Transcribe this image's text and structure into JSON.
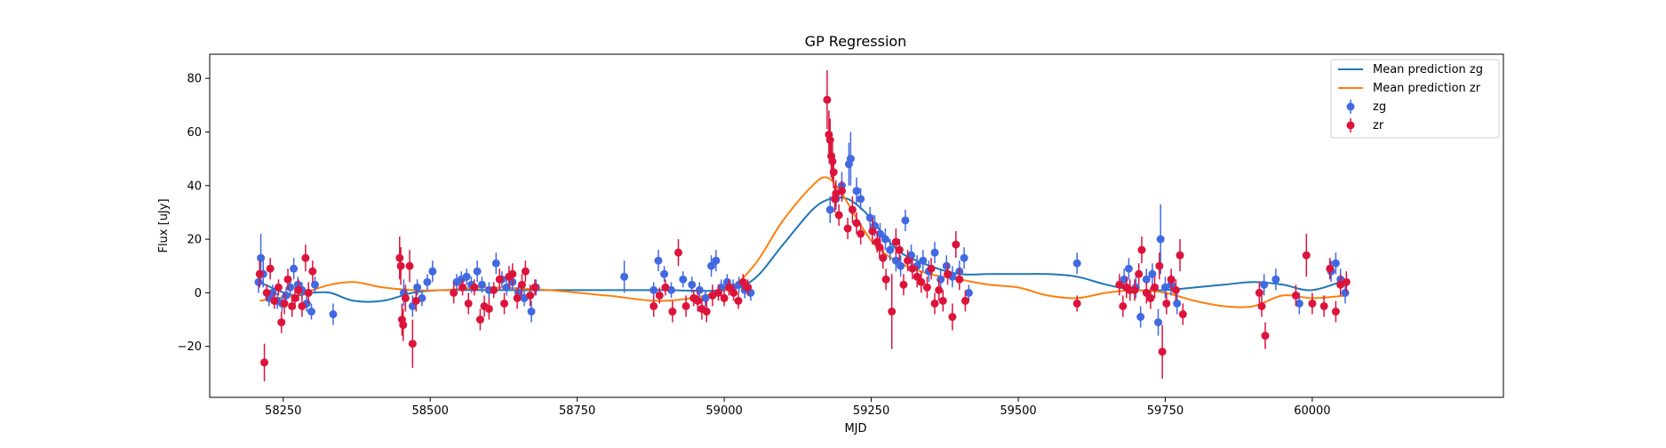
{
  "chart_data": {
    "type": "scatter",
    "title": "GP Regression",
    "xlabel": "MJD",
    "ylabel": "Flux [uJy]",
    "xlim": [
      58125,
      60325
    ],
    "ylim": [
      -39,
      89
    ],
    "xticks": [
      58250,
      58500,
      58750,
      59000,
      59250,
      59500,
      59750,
      60000
    ],
    "yticks": [
      -20,
      0,
      20,
      40,
      60,
      80
    ],
    "grid": false,
    "legend_position": "top-right",
    "legend": [
      "Mean prediction zg",
      "Mean prediction zr",
      "zg",
      "zr"
    ],
    "colors": {
      "mean_zg": "#1f77b4",
      "mean_zr": "#ff7f0e",
      "zg": "#4169e1",
      "zr": "#dc143c"
    },
    "lines": [
      {
        "name": "Mean prediction zg",
        "x": [
          58210,
          58240,
          58270,
          58300,
          58330,
          58370,
          58420,
          58470,
          58520,
          58600,
          58700,
          58800,
          58900,
          59000,
          59050,
          59100,
          59150,
          59180,
          59210,
          59240,
          59270,
          59300,
          59350,
          59400,
          59450,
          59500,
          59550,
          59600,
          59650,
          59700,
          59750,
          59800,
          59850,
          59900,
          59950,
          60000,
          60060
        ],
        "y": [
          4,
          1,
          -1,
          0,
          0,
          -3,
          -3,
          0,
          1,
          1,
          1,
          1,
          1,
          1,
          5,
          18,
          31,
          35,
          35,
          30,
          22,
          15,
          10,
          7,
          7,
          7,
          7,
          6,
          3,
          1,
          1,
          2,
          3,
          4,
          3,
          1,
          5
        ]
      },
      {
        "name": "Mean prediction zr",
        "x": [
          58210,
          58240,
          58270,
          58300,
          58330,
          58370,
          58420,
          58470,
          58520,
          58600,
          58700,
          58800,
          58900,
          59000,
          59050,
          59100,
          59150,
          59175,
          59200,
          59230,
          59260,
          59300,
          59350,
          59400,
          59450,
          59500,
          59550,
          59600,
          59650,
          59700,
          59750,
          59800,
          59850,
          59900,
          59950,
          60000,
          60060
        ],
        "y": [
          -3,
          -2,
          -1,
          1,
          3,
          4,
          2,
          1,
          1,
          2,
          1,
          -1,
          -3,
          1,
          10,
          27,
          40,
          43,
          37,
          26,
          17,
          11,
          7,
          5,
          3,
          2,
          -1,
          -2,
          0,
          1,
          0,
          -3,
          -5,
          -5,
          -1,
          -2,
          -1
        ]
      }
    ],
    "series": [
      {
        "name": "zg",
        "points": [
          [
            58208,
            4,
            4
          ],
          [
            58212,
            13,
            9
          ],
          [
            58216,
            7,
            5
          ],
          [
            58226,
            -2,
            3
          ],
          [
            58232,
            0,
            3
          ],
          [
            58240,
            -3,
            3
          ],
          [
            58248,
            -4,
            3
          ],
          [
            58255,
            -1,
            3
          ],
          [
            58262,
            2,
            3
          ],
          [
            58268,
            9,
            4
          ],
          [
            58275,
            3,
            3
          ],
          [
            58282,
            1,
            3
          ],
          [
            58290,
            -4,
            3
          ],
          [
            58298,
            -7,
            3
          ],
          [
            58304,
            3,
            3
          ],
          [
            58335,
            -8,
            4
          ],
          [
            58455,
            0,
            5
          ],
          [
            58470,
            -5,
            4
          ],
          [
            58478,
            2,
            3
          ],
          [
            58486,
            -2,
            3
          ],
          [
            58495,
            4,
            3
          ],
          [
            58504,
            8,
            4
          ],
          [
            58545,
            4,
            3
          ],
          [
            58553,
            5,
            3
          ],
          [
            58562,
            6,
            3
          ],
          [
            58570,
            3,
            3
          ],
          [
            58580,
            8,
            4
          ],
          [
            58588,
            3,
            3
          ],
          [
            58600,
            1,
            3
          ],
          [
            58612,
            11,
            4
          ],
          [
            58622,
            5,
            3
          ],
          [
            58630,
            2,
            3
          ],
          [
            58640,
            4,
            3
          ],
          [
            58650,
            0,
            3
          ],
          [
            58660,
            -2,
            3
          ],
          [
            58672,
            -7,
            4
          ],
          [
            58680,
            2,
            3
          ],
          [
            58830,
            6,
            6
          ],
          [
            58880,
            1,
            3
          ],
          [
            58888,
            12,
            4
          ],
          [
            58898,
            7,
            3
          ],
          [
            58910,
            1,
            3
          ],
          [
            58930,
            5,
            3
          ],
          [
            58945,
            3,
            3
          ],
          [
            58958,
            1,
            3
          ],
          [
            58968,
            -2,
            3
          ],
          [
            58978,
            10,
            4
          ],
          [
            58986,
            12,
            4
          ],
          [
            58995,
            2,
            3
          ],
          [
            59005,
            4,
            3
          ],
          [
            59015,
            2,
            3
          ],
          [
            59025,
            3,
            3
          ],
          [
            59035,
            1,
            3
          ],
          [
            59045,
            0,
            3
          ],
          [
            59180,
            31,
            5
          ],
          [
            59190,
            35,
            4
          ],
          [
            59200,
            40,
            5
          ],
          [
            59212,
            48,
            8
          ],
          [
            59215,
            50,
            10
          ],
          [
            59225,
            38,
            5
          ],
          [
            59232,
            35,
            4
          ],
          [
            59248,
            28,
            4
          ],
          [
            59256,
            25,
            4
          ],
          [
            59265,
            22,
            4
          ],
          [
            59274,
            20,
            4
          ],
          [
            59282,
            16,
            4
          ],
          [
            59292,
            12,
            4
          ],
          [
            59300,
            10,
            4
          ],
          [
            59308,
            27,
            4
          ],
          [
            59318,
            14,
            4
          ],
          [
            59328,
            10,
            4
          ],
          [
            59338,
            12,
            4
          ],
          [
            59348,
            8,
            4
          ],
          [
            59358,
            15,
            4
          ],
          [
            59368,
            5,
            4
          ],
          [
            59378,
            10,
            4
          ],
          [
            59388,
            6,
            4
          ],
          [
            59400,
            8,
            4
          ],
          [
            59408,
            13,
            4
          ],
          [
            59416,
            0,
            3
          ],
          [
            59600,
            11,
            4
          ],
          [
            59680,
            5,
            4
          ],
          [
            59688,
            9,
            4
          ],
          [
            59700,
            2,
            4
          ],
          [
            59708,
            -9,
            4
          ],
          [
            59718,
            5,
            4
          ],
          [
            59728,
            7,
            4
          ],
          [
            59738,
            -11,
            5
          ],
          [
            59742,
            20,
            13
          ],
          [
            59750,
            2,
            4
          ],
          [
            59760,
            3,
            4
          ],
          [
            59770,
            -4,
            4
          ],
          [
            59918,
            3,
            4
          ],
          [
            59938,
            5,
            4
          ],
          [
            59978,
            -4,
            4
          ],
          [
            60032,
            8,
            4
          ],
          [
            60040,
            11,
            4
          ],
          [
            60048,
            5,
            4
          ],
          [
            60056,
            0,
            4
          ]
        ]
      },
      {
        "name": "zr",
        "points": [
          [
            58210,
            7,
            5
          ],
          [
            58218,
            -26,
            7
          ],
          [
            58222,
            0,
            3
          ],
          [
            58228,
            9,
            4
          ],
          [
            58235,
            -3,
            3
          ],
          [
            58242,
            2,
            3
          ],
          [
            58247,
            -11,
            4
          ],
          [
            58252,
            -4,
            4
          ],
          [
            58258,
            5,
            4
          ],
          [
            58265,
            -5,
            4
          ],
          [
            58270,
            -2,
            4
          ],
          [
            58276,
            1,
            4
          ],
          [
            58282,
            -5,
            4
          ],
          [
            58288,
            13,
            5
          ],
          [
            58293,
            0,
            4
          ],
          [
            58300,
            8,
            4
          ],
          [
            58448,
            13,
            8
          ],
          [
            58450,
            10,
            7
          ],
          [
            58452,
            -10,
            6
          ],
          [
            58454,
            -12,
            6
          ],
          [
            58458,
            -2,
            5
          ],
          [
            58465,
            10,
            6
          ],
          [
            58470,
            -19,
            9
          ],
          [
            58476,
            -3,
            4
          ],
          [
            58540,
            0,
            4
          ],
          [
            58555,
            2,
            3
          ],
          [
            58565,
            -4,
            4
          ],
          [
            58575,
            2,
            3
          ],
          [
            58585,
            -10,
            4
          ],
          [
            58592,
            -5,
            4
          ],
          [
            58600,
            -6,
            4
          ],
          [
            58608,
            1,
            3
          ],
          [
            58618,
            5,
            4
          ],
          [
            58626,
            -4,
            4
          ],
          [
            58634,
            6,
            4
          ],
          [
            58640,
            7,
            4
          ],
          [
            58648,
            -2,
            4
          ],
          [
            58656,
            3,
            4
          ],
          [
            58662,
            8,
            4
          ],
          [
            58670,
            -1,
            4
          ],
          [
            58678,
            2,
            3
          ],
          [
            58880,
            -5,
            4
          ],
          [
            58890,
            -1,
            3
          ],
          [
            58900,
            2,
            3
          ],
          [
            58912,
            -7,
            4
          ],
          [
            58922,
            15,
            5
          ],
          [
            58935,
            -5,
            4
          ],
          [
            58948,
            -2,
            3
          ],
          [
            58955,
            -3,
            4
          ],
          [
            58962,
            -6,
            4
          ],
          [
            58970,
            -7,
            4
          ],
          [
            58980,
            -1,
            4
          ],
          [
            58990,
            0,
            3
          ],
          [
            59000,
            -2,
            3
          ],
          [
            59008,
            2,
            3
          ],
          [
            59016,
            0,
            3
          ],
          [
            59024,
            -3,
            3
          ],
          [
            59032,
            4,
            3
          ],
          [
            59040,
            2,
            3
          ],
          [
            59175,
            72,
            11
          ],
          [
            59178,
            59,
            9
          ],
          [
            59180,
            57,
            8
          ],
          [
            59182,
            51,
            8
          ],
          [
            59184,
            49,
            7
          ],
          [
            59186,
            45,
            6
          ],
          [
            59188,
            35,
            5
          ],
          [
            59190,
            37,
            5
          ],
          [
            59195,
            29,
            4
          ],
          [
            59200,
            38,
            4
          ],
          [
            59210,
            24,
            4
          ],
          [
            59218,
            31,
            5
          ],
          [
            59225,
            26,
            4
          ],
          [
            59232,
            22,
            4
          ],
          [
            59252,
            23,
            5
          ],
          [
            59260,
            19,
            4
          ],
          [
            59264,
            17,
            4
          ],
          [
            59270,
            13,
            4
          ],
          [
            59275,
            5,
            4
          ],
          [
            59285,
            -7,
            14
          ],
          [
            59292,
            19,
            5
          ],
          [
            59298,
            16,
            4
          ],
          [
            59305,
            3,
            4
          ],
          [
            59312,
            12,
            4
          ],
          [
            59320,
            9,
            4
          ],
          [
            59328,
            6,
            4
          ],
          [
            59335,
            4,
            4
          ],
          [
            59345,
            2,
            4
          ],
          [
            59352,
            9,
            4
          ],
          [
            59358,
            -4,
            4
          ],
          [
            59365,
            1,
            4
          ],
          [
            59372,
            -3,
            4
          ],
          [
            59380,
            7,
            4
          ],
          [
            59388,
            -9,
            5
          ],
          [
            59394,
            18,
            5
          ],
          [
            59400,
            5,
            4
          ],
          [
            59410,
            -3,
            4
          ],
          [
            59600,
            -4,
            3
          ],
          [
            59672,
            3,
            4
          ],
          [
            59678,
            -5,
            4
          ],
          [
            59684,
            2,
            4
          ],
          [
            59690,
            1,
            4
          ],
          [
            59698,
            1,
            4
          ],
          [
            59705,
            7,
            4
          ],
          [
            59710,
            16,
            5
          ],
          [
            59718,
            0,
            4
          ],
          [
            59725,
            -2,
            4
          ],
          [
            59732,
            2,
            4
          ],
          [
            59740,
            10,
            5
          ],
          [
            59745,
            -22,
            10
          ],
          [
            59752,
            -4,
            4
          ],
          [
            59760,
            5,
            4
          ],
          [
            59768,
            1,
            4
          ],
          [
            59775,
            14,
            6
          ],
          [
            59780,
            -8,
            4
          ],
          [
            59910,
            0,
            4
          ],
          [
            59914,
            -5,
            4
          ],
          [
            59920,
            -16,
            5
          ],
          [
            59972,
            -1,
            4
          ],
          [
            59990,
            14,
            8
          ],
          [
            60000,
            -4,
            4
          ],
          [
            60020,
            -5,
            4
          ],
          [
            60030,
            9,
            4
          ],
          [
            60040,
            -7,
            4
          ],
          [
            60048,
            3,
            4
          ],
          [
            60058,
            4,
            4
          ]
        ]
      }
    ]
  }
}
